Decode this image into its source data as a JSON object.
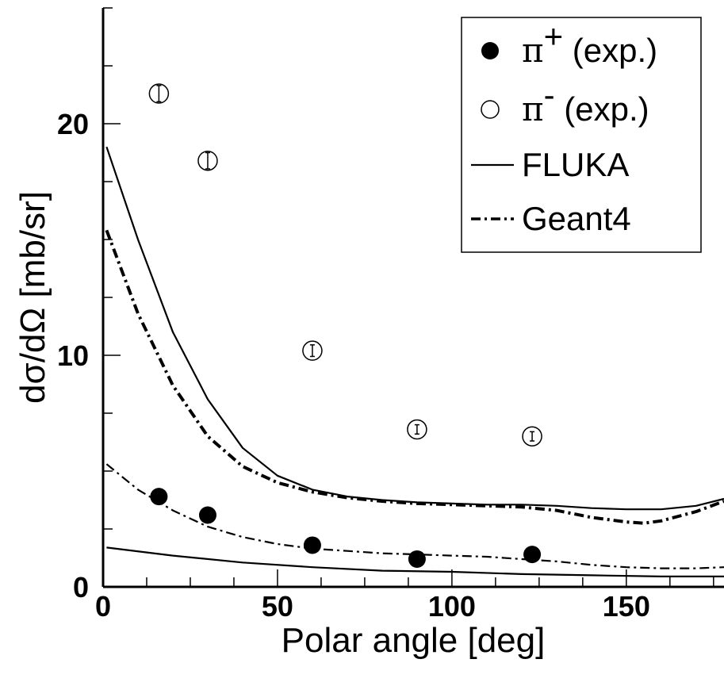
{
  "chart_data": {
    "type": "scatter",
    "xlabel": "Polar angle [deg]",
    "ylabel": "dσ/dΩ  [mb/sr]",
    "xlim": [
      0,
      178
    ],
    "ylim": [
      0,
      25
    ],
    "x_ticks": [
      "0",
      "50",
      "100",
      "150"
    ],
    "y_ticks": [
      "0",
      "10",
      "20"
    ],
    "grid": false,
    "legend_position": "top-right",
    "legend": [
      {
        "symbol": "filled-circle",
        "base": "π",
        "sup": "+",
        "suffix": " (exp.)"
      },
      {
        "symbol": "open-circle",
        "base": "π",
        "sup": "-",
        "suffix": " (exp.)"
      },
      {
        "symbol": "solid-line",
        "label": "FLUKA"
      },
      {
        "symbol": "dash-dot-line",
        "label": "Geant4"
      }
    ],
    "series": [
      {
        "name": "π+ (exp.)",
        "kind": "points",
        "marker": "filled",
        "x": [
          16,
          30,
          60,
          90,
          123
        ],
        "y": [
          3.9,
          3.1,
          1.8,
          1.2,
          1.4
        ],
        "err": [
          0.15,
          0.15,
          0.1,
          0.08,
          0.1
        ]
      },
      {
        "name": "π- (exp.)",
        "kind": "points",
        "marker": "open",
        "x": [
          16,
          30,
          60,
          90,
          123
        ],
        "y": [
          21.3,
          18.4,
          10.2,
          6.8,
          6.5
        ],
        "err": [
          0.35,
          0.35,
          0.25,
          0.2,
          0.2
        ]
      },
      {
        "name": "FLUKA",
        "kind": "line",
        "style": "solid",
        "x": [
          1,
          10,
          20,
          30,
          40,
          50,
          60,
          70,
          80,
          90,
          100,
          110,
          120,
          130,
          140,
          150,
          160,
          170,
          178
        ],
        "y": [
          19.0,
          15.0,
          11.0,
          8.1,
          6.0,
          4.8,
          4.2,
          3.9,
          3.75,
          3.65,
          3.6,
          3.55,
          3.55,
          3.5,
          3.4,
          3.35,
          3.35,
          3.5,
          3.8
        ]
      },
      {
        "name": "FLUKA",
        "kind": "line",
        "style": "solid",
        "x": [
          1,
          20,
          40,
          60,
          80,
          100,
          120,
          140,
          160,
          178
        ],
        "y": [
          1.7,
          1.35,
          1.05,
          0.85,
          0.7,
          0.65,
          0.55,
          0.5,
          0.45,
          0.45
        ]
      },
      {
        "name": "Geant4",
        "kind": "line",
        "style": "dash-dot-bold",
        "x": [
          1,
          10,
          20,
          30,
          40,
          50,
          60,
          70,
          80,
          90,
          100,
          110,
          120,
          130,
          140,
          150,
          155,
          160,
          170,
          178
        ],
        "y": [
          15.4,
          11.8,
          8.7,
          6.5,
          5.2,
          4.5,
          4.1,
          3.85,
          3.7,
          3.6,
          3.55,
          3.5,
          3.45,
          3.3,
          3.0,
          2.8,
          2.75,
          2.85,
          3.25,
          3.7
        ]
      },
      {
        "name": "Geant4",
        "kind": "line",
        "style": "dash-dot",
        "x": [
          1,
          10,
          20,
          30,
          40,
          50,
          60,
          70,
          80,
          90,
          100,
          110,
          120,
          130,
          140,
          150,
          160,
          170,
          178
        ],
        "y": [
          5.3,
          4.2,
          3.3,
          2.6,
          2.15,
          1.85,
          1.65,
          1.55,
          1.45,
          1.4,
          1.35,
          1.3,
          1.2,
          1.1,
          0.95,
          0.85,
          0.8,
          0.8,
          0.85
        ]
      }
    ]
  }
}
